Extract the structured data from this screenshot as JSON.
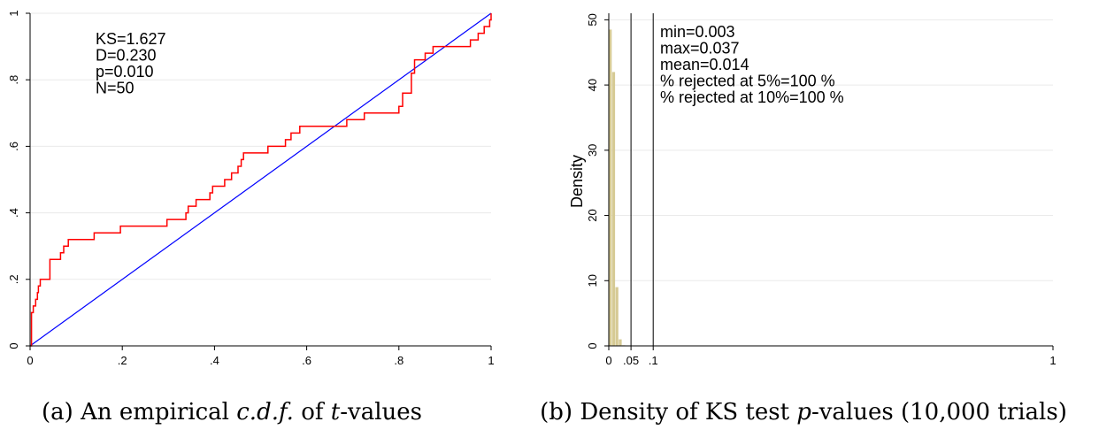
{
  "chart_data": [
    {
      "type": "line",
      "caption": {
        "prefix": "(a) An empirical ",
        "italic1": "c.d.f.",
        "middle": " of ",
        "italic2": "t",
        "suffix": "-values"
      },
      "annotations": [
        "KS=1.627",
        "D=0.230",
        "p=0.010",
        "N=50"
      ],
      "xlim": [
        0,
        1
      ],
      "ylim": [
        0,
        1
      ],
      "xticks": [
        0,
        0.2,
        0.4,
        0.6,
        0.8,
        1
      ],
      "xtick_labels": [
        "0",
        ".2",
        ".4",
        ".6",
        ".8",
        "1"
      ],
      "yticks": [
        0,
        0.2,
        0.4,
        0.6,
        0.8,
        1
      ],
      "ytick_labels": [
        "0",
        ".2",
        ".4",
        ".6",
        ".8",
        "1"
      ],
      "grid": true,
      "series": [
        {
          "color": "#ff0000",
          "kind": "step",
          "x": [
            0.003,
            0.007,
            0.012,
            0.016,
            0.018,
            0.022,
            0.043,
            0.066,
            0.073,
            0.083,
            0.139,
            0.196,
            0.229,
            0.297,
            0.338,
            0.343,
            0.36,
            0.378,
            0.39,
            0.396,
            0.422,
            0.437,
            0.451,
            0.458,
            0.463,
            0.516,
            0.554,
            0.566,
            0.585,
            0.687,
            0.725,
            0.8,
            0.808,
            0.827,
            0.827,
            0.834,
            0.857,
            0.874,
            0.955,
            0.972,
            0.985,
            0.997
          ],
          "y": [
            0.1,
            0.12,
            0.14,
            0.16,
            0.18,
            0.2,
            0.26,
            0.28,
            0.3,
            0.32,
            0.34,
            0.36,
            0.36,
            0.38,
            0.4,
            0.42,
            0.44,
            0.44,
            0.46,
            0.48,
            0.5,
            0.52,
            0.54,
            0.56,
            0.58,
            0.6,
            0.62,
            0.64,
            0.66,
            0.68,
            0.7,
            0.72,
            0.76,
            0.78,
            0.82,
            0.86,
            0.88,
            0.9,
            0.92,
            0.94,
            0.96,
            0.98
          ],
          "start": [
            0,
            0
          ],
          "end": [
            1,
            1
          ]
        },
        {
          "color": "#0000ff",
          "kind": "line",
          "x": [
            0,
            1
          ],
          "y": [
            0,
            1
          ]
        }
      ]
    },
    {
      "type": "bar",
      "caption": {
        "prefix": "(b) Density of KS test ",
        "italic1": "p",
        "suffix": "-values (10,000 trials)"
      },
      "ylabel": "Density",
      "annotations": [
        "min=0.003",
        "max=0.037",
        "mean=0.014",
        "% rejected at 5%=100 %",
        "% rejected at 10%=100 %"
      ],
      "xlim": [
        0,
        1
      ],
      "ylim": [
        0,
        51
      ],
      "xticks": [
        0,
        0.05,
        0.1,
        1
      ],
      "xtick_labels": [
        "0",
        ".05",
        ".1",
        "1"
      ],
      "yticks": [
        0,
        10,
        20,
        30,
        40,
        50
      ],
      "ytick_labels": [
        "0",
        "10",
        "20",
        "30",
        "40",
        "50"
      ],
      "grid": true,
      "bar_color": "#d6ca94",
      "bins": [
        {
          "x0": 0.0,
          "x1": 0.0075,
          "value": 48.5
        },
        {
          "x0": 0.0075,
          "x1": 0.015,
          "value": 42.0
        },
        {
          "x0": 0.015,
          "x1": 0.0225,
          "value": 9.0
        },
        {
          "x0": 0.0225,
          "x1": 0.03,
          "value": 1.0
        },
        {
          "x0": 0.03,
          "x1": 0.0375,
          "value": 0.1
        }
      ],
      "vlines": [
        0.05,
        0.1
      ],
      "vline_color": "#000000"
    }
  ]
}
